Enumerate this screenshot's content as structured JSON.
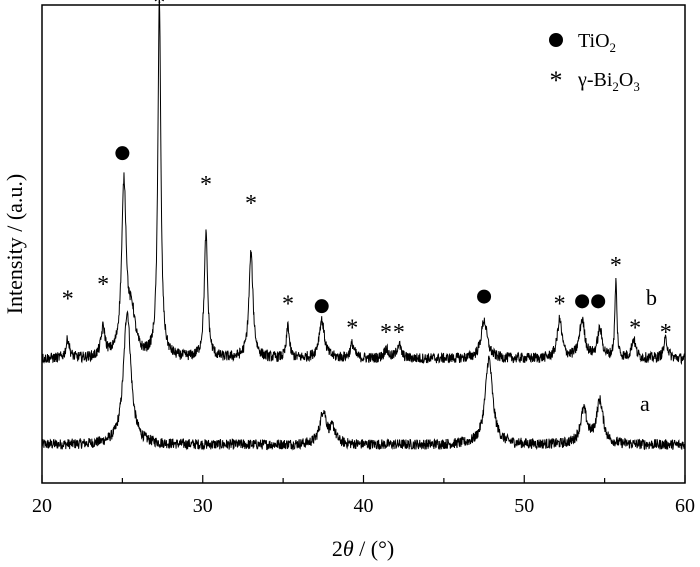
{
  "chart_data": {
    "type": "line",
    "xlabel_parts": [
      "2",
      "θ",
      " / (°)"
    ],
    "ylabel": "Intensity / (a.u.)",
    "xlim": [
      20,
      60
    ],
    "xticks": [
      20,
      30,
      40,
      50,
      60
    ],
    "yticks_shown": false,
    "grid": false,
    "legend_position": "top-right",
    "legend": [
      {
        "marker": "filled-circle",
        "label_parts": [
          "TiO",
          "2",
          ""
        ]
      },
      {
        "marker": "asterisk",
        "label_parts": [
          "γ-Bi",
          "2",
          "O",
          "3"
        ]
      }
    ],
    "series": [
      {
        "name": "a",
        "baseline": 0.08,
        "peaks": [
          {
            "x": 25.3,
            "h": 0.28,
            "w": 0.55
          },
          {
            "x": 37.5,
            "h": 0.07,
            "w": 0.5
          },
          {
            "x": 38.1,
            "h": 0.03,
            "w": 0.4
          },
          {
            "x": 47.8,
            "h": 0.18,
            "w": 0.55
          },
          {
            "x": 53.7,
            "h": 0.07,
            "w": 0.5
          },
          {
            "x": 54.7,
            "h": 0.09,
            "w": 0.5
          }
        ]
      },
      {
        "name": "b",
        "baseline": 0.26,
        "peaks": [
          {
            "x": 21.6,
            "h": 0.04,
            "w": 0.25
          },
          {
            "x": 23.8,
            "h": 0.06,
            "w": 0.3
          },
          {
            "x": 25.1,
            "h": 0.36,
            "w": 0.35
          },
          {
            "x": 25.6,
            "h": 0.08,
            "w": 0.5
          },
          {
            "x": 27.3,
            "h": 0.75,
            "w": 0.22
          },
          {
            "x": 30.2,
            "h": 0.26,
            "w": 0.25
          },
          {
            "x": 33.0,
            "h": 0.22,
            "w": 0.3
          },
          {
            "x": 35.3,
            "h": 0.07,
            "w": 0.2
          },
          {
            "x": 37.4,
            "h": 0.08,
            "w": 0.4
          },
          {
            "x": 39.3,
            "h": 0.03,
            "w": 0.3
          },
          {
            "x": 41.4,
            "h": 0.02,
            "w": 0.3
          },
          {
            "x": 42.2,
            "h": 0.03,
            "w": 0.3
          },
          {
            "x": 47.5,
            "h": 0.08,
            "w": 0.45
          },
          {
            "x": 52.2,
            "h": 0.08,
            "w": 0.35
          },
          {
            "x": 53.6,
            "h": 0.08,
            "w": 0.4
          },
          {
            "x": 54.7,
            "h": 0.06,
            "w": 0.35
          },
          {
            "x": 55.7,
            "h": 0.16,
            "w": 0.15
          },
          {
            "x": 56.8,
            "h": 0.04,
            "w": 0.3
          },
          {
            "x": 58.8,
            "h": 0.04,
            "w": 0.3
          }
        ]
      }
    ],
    "markers": [
      {
        "type": "asterisk",
        "x": 21.6,
        "y": 0.39
      },
      {
        "type": "asterisk",
        "x": 23.8,
        "y": 0.42
      },
      {
        "type": "circle",
        "x": 25.0,
        "y": 0.69
      },
      {
        "type": "asterisk",
        "x": 27.3,
        "y": 1.01
      },
      {
        "type": "asterisk",
        "x": 30.2,
        "y": 0.63
      },
      {
        "type": "asterisk",
        "x": 33.0,
        "y": 0.59
      },
      {
        "type": "asterisk",
        "x": 35.3,
        "y": 0.38
      },
      {
        "type": "circle",
        "x": 37.4,
        "y": 0.37
      },
      {
        "type": "asterisk",
        "x": 39.3,
        "y": 0.33
      },
      {
        "type": "asterisk",
        "x": 41.4,
        "y": 0.32
      },
      {
        "type": "asterisk",
        "x": 42.2,
        "y": 0.32
      },
      {
        "type": "circle",
        "x": 47.5,
        "y": 0.39
      },
      {
        "type": "asterisk",
        "x": 52.2,
        "y": 0.38
      },
      {
        "type": "circle",
        "x": 53.6,
        "y": 0.38
      },
      {
        "type": "circle",
        "x": 54.6,
        "y": 0.38
      },
      {
        "type": "asterisk",
        "x": 55.7,
        "y": 0.46
      },
      {
        "type": "asterisk",
        "x": 56.9,
        "y": 0.33
      },
      {
        "type": "asterisk",
        "x": 58.8,
        "y": 0.32
      }
    ]
  }
}
